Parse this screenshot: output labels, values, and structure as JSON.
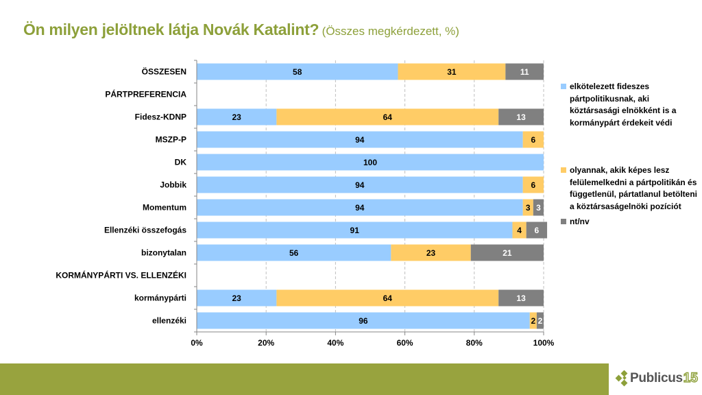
{
  "header": {
    "title": "Ön milyen jelöltnek látja Novák Katalint?",
    "subtitle": "(Összes megkérdezett, %)"
  },
  "colors": {
    "title": "#8da03a",
    "series_committed": "#99ccff",
    "series_nonpartisan": "#ffcc66",
    "series_dk": "#808080",
    "footer": "#98a33e"
  },
  "chart_data": {
    "type": "bar",
    "orientation": "horizontal",
    "stacked": "percent",
    "title": "Ön milyen jelöltnek látja Novák Katalint? (Összes megkérdezett, %)",
    "xlabel": "",
    "ylabel": "",
    "xlim": [
      0,
      100
    ],
    "x_ticks": [
      "0%",
      "20%",
      "40%",
      "60%",
      "80%",
      "100%"
    ],
    "grid": "vertical dashed",
    "legend_position": "right",
    "categories": [
      "ÖSSZESEN",
      "PÁRTPREFERENCIA",
      "Fidesz-KDNP",
      "MSZP-P",
      "DK",
      "Jobbik",
      "Momentum",
      "Ellenzéki összefogás",
      "bizonytalan",
      "KORMÁNYPÁRTI VS. ELLENZÉKI",
      "kormánypárti",
      "ellenzéki"
    ],
    "series": [
      {
        "name": "elkötelezett fideszes pártpolitikusnak, aki köztársasági elnökként is a kormánypárt érdekeit védi",
        "values": [
          58,
          null,
          23,
          94,
          100,
          94,
          94,
          91,
          56,
          null,
          23,
          96
        ]
      },
      {
        "name": "olyannak, akik képes lesz felülemelkedni a pártpolitikán és függetlenül, pártatlanul betölteni a köztársaságelnöki pozíciót",
        "values": [
          31,
          null,
          64,
          6,
          null,
          6,
          3,
          4,
          23,
          null,
          64,
          2
        ]
      },
      {
        "name": "nt/nv",
        "values": [
          11,
          null,
          13,
          null,
          null,
          null,
          3,
          6,
          21,
          null,
          13,
          2
        ]
      }
    ]
  },
  "footer": {
    "logo_text": "Publicus",
    "logo_number": "15"
  }
}
